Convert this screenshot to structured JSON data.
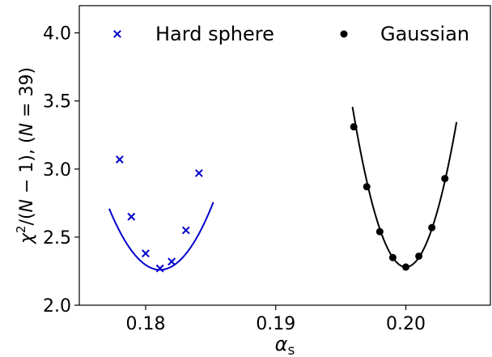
{
  "chart_data": {
    "type": "scatter",
    "xlabel": "α",
    "xlabel_sub": "s",
    "ylabel_parts": [
      "χ",
      "2",
      "/(",
      "N",
      " − 1),  (",
      "N",
      " = 39)"
    ],
    "xlim": [
      0.1749,
      0.2065
    ],
    "ylim": [
      2.0,
      4.2
    ],
    "x_ticks": [
      0.18,
      0.19,
      0.2
    ],
    "x_tick_labels": [
      "0.18",
      "0.19",
      "0.20"
    ],
    "y_ticks": [
      2.0,
      2.5,
      3.0,
      3.5,
      4.0
    ],
    "y_tick_labels": [
      "2.0",
      "2.5",
      "3.0",
      "3.5",
      "4.0"
    ],
    "grid": false,
    "legend_position": "top",
    "series": [
      {
        "name": "Hard sphere",
        "marker": "x",
        "color": "#0000cc",
        "x": [
          0.178,
          0.1789,
          0.18,
          0.1811,
          0.182,
          0.1831,
          0.1841
        ],
        "y": [
          3.07,
          2.65,
          2.38,
          2.27,
          2.32,
          2.55,
          2.97
        ],
        "fit": {
          "x_range": [
            0.1772,
            0.1852
          ],
          "vertex_x": 0.1811,
          "vertex_y": 2.26,
          "a": 29500
        }
      },
      {
        "name": "Gaussian",
        "marker": "circle",
        "color": "#000000",
        "x": [
          0.196,
          0.197,
          0.198,
          0.199,
          0.2,
          0.201,
          0.202,
          0.203
        ],
        "y": [
          3.31,
          2.87,
          2.54,
          2.35,
          2.28,
          2.36,
          2.57,
          2.93
        ],
        "fit": {
          "x_range": [
            0.1959,
            0.2039
          ],
          "vertex_x": 0.2,
          "vertex_y": 2.28,
          "a": 70000
        }
      }
    ]
  }
}
